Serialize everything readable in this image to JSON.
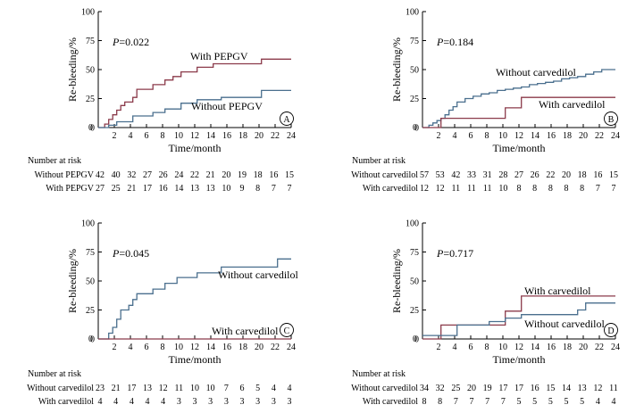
{
  "chart_data": [
    {
      "type": "line",
      "panel_label": "A",
      "p_value": "=0.022",
      "xlabel": "Time/month",
      "ylabel": "Re-bleeding/%",
      "xlim": [
        0,
        24
      ],
      "ylim": [
        0,
        100
      ],
      "xticks": [
        2,
        4,
        6,
        8,
        10,
        12,
        14,
        16,
        18,
        20,
        22,
        24
      ],
      "yticks": [
        0,
        25,
        50,
        75,
        100
      ],
      "series": [
        {
          "name": "With PEPGV",
          "color": "#8b3a4a",
          "x": [
            0,
            0.8,
            1.3,
            1.8,
            2.3,
            2.8,
            3.3,
            4.3,
            4.8,
            6.8,
            8.3,
            9.3,
            10.3,
            12.3,
            14.3,
            15.3,
            20.3,
            22.3,
            24
          ],
          "y": [
            0,
            3,
            7,
            11,
            15,
            19,
            22,
            26,
            33,
            37,
            41,
            44,
            48,
            52,
            55,
            55,
            59,
            59,
            59
          ]
        },
        {
          "name": "Without PEPGV",
          "color": "#4a6f8e",
          "x": [
            0,
            1.3,
            2.3,
            4.3,
            6.8,
            8.3,
            10.3,
            12.3,
            15.3,
            18.3,
            20.3,
            22.3,
            24
          ],
          "y": [
            0,
            2,
            5,
            10,
            13,
            16,
            21,
            24,
            26,
            26,
            32,
            32,
            32
          ]
        }
      ],
      "risk_table": {
        "title": "Number at risk",
        "rows": [
          {
            "label": "Without PEPGV",
            "values": [
              42,
              40,
              32,
              27,
              26,
              24,
              22,
              21,
              20,
              19,
              18,
              16,
              15
            ]
          },
          {
            "label": "With PEPGV",
            "values": [
              27,
              25,
              21,
              17,
              16,
              14,
              13,
              13,
              10,
              9,
              8,
              7,
              7
            ]
          }
        ]
      }
    },
    {
      "type": "line",
      "panel_label": "B",
      "p_value": "=0.184",
      "xlabel": "Time/month",
      "ylabel": "Re-bleeding/%",
      "xlim": [
        0,
        24
      ],
      "ylim": [
        0,
        100
      ],
      "xticks": [
        2,
        4,
        6,
        8,
        10,
        12,
        14,
        16,
        18,
        20,
        22,
        24
      ],
      "yticks": [
        0,
        25,
        50,
        75,
        100
      ],
      "series": [
        {
          "name": "Without carvedilol",
          "color": "#4a6f8e",
          "x": [
            0,
            0.8,
            1.3,
            1.8,
            2.3,
            2.8,
            3.3,
            3.8,
            4.3,
            5.3,
            6.3,
            7.3,
            8.3,
            9.3,
            10.3,
            11.3,
            12.3,
            13.3,
            14.3,
            15.3,
            16.3,
            17.3,
            18.3,
            19.3,
            20.3,
            21.3,
            22.3,
            24
          ],
          "y": [
            0,
            2,
            4,
            6,
            8,
            11,
            15,
            18,
            22,
            25,
            27,
            29,
            30,
            32,
            33,
            34,
            35,
            37,
            38,
            39,
            40,
            42,
            43,
            44,
            46,
            48,
            50,
            50
          ]
        },
        {
          "name": "With carvedilol",
          "color": "#8b3a4a",
          "x": [
            0,
            2.3,
            10.3,
            12.3,
            24
          ],
          "y": [
            0,
            8,
            17,
            26,
            26
          ]
        }
      ],
      "risk_table": {
        "title": "Number at risk",
        "rows": [
          {
            "label": "Without carvedilol",
            "values": [
              57,
              53,
              42,
              33,
              31,
              28,
              27,
              26,
              22,
              20,
              18,
              16,
              15
            ]
          },
          {
            "label": "With carvedilol",
            "values": [
              12,
              12,
              11,
              11,
              11,
              10,
              8,
              8,
              8,
              8,
              8,
              7,
              7
            ]
          }
        ]
      }
    },
    {
      "type": "line",
      "panel_label": "C",
      "p_value": "=0.045",
      "xlabel": "Time/month",
      "ylabel": "Re-bleeding/%",
      "xlim": [
        0,
        24
      ],
      "ylim": [
        0,
        100
      ],
      "xticks": [
        2,
        4,
        6,
        8,
        10,
        12,
        14,
        16,
        18,
        20,
        22,
        24
      ],
      "yticks": [
        0,
        25,
        50,
        75,
        100
      ],
      "series": [
        {
          "name": "Without carvedilol",
          "color": "#4a6f8e",
          "x": [
            0,
            1.3,
            1.8,
            2.3,
            2.8,
            3.8,
            4.3,
            4.8,
            6.8,
            8.3,
            9.8,
            12.3,
            15.3,
            20.3,
            22.3,
            24
          ],
          "y": [
            0,
            5,
            10,
            17,
            25,
            29,
            34,
            39,
            43,
            48,
            53,
            57,
            62,
            62,
            69,
            69
          ]
        },
        {
          "name": "With carvedilol",
          "color": "#8b3a4a",
          "x": [
            0,
            24
          ],
          "y": [
            0,
            0
          ]
        }
      ],
      "risk_table": {
        "title": "Number at risk",
        "rows": [
          {
            "label": "Without carvedilol",
            "values": [
              23,
              21,
              17,
              13,
              12,
              11,
              10,
              10,
              7,
              6,
              5,
              4,
              4
            ]
          },
          {
            "label": "With carvedilol",
            "values": [
              4,
              4,
              4,
              4,
              4,
              3,
              3,
              3,
              3,
              3,
              3,
              3,
              3
            ]
          }
        ]
      }
    },
    {
      "type": "line",
      "panel_label": "D",
      "p_value": "=0.717",
      "xlabel": "Time/month",
      "ylabel": "Re-bleeding/%",
      "xlim": [
        0,
        24
      ],
      "ylim": [
        0,
        100
      ],
      "xticks": [
        2,
        4,
        6,
        8,
        10,
        12,
        14,
        16,
        18,
        20,
        22,
        24
      ],
      "yticks": [
        0,
        25,
        50,
        75,
        100
      ],
      "series": [
        {
          "name": "With carvedilol",
          "color": "#8b3a4a",
          "x": [
            0,
            2.3,
            10.3,
            12.3,
            24
          ],
          "y": [
            0,
            12,
            24,
            37,
            37
          ]
        },
        {
          "name": "Without carvedilol",
          "color": "#4a6f8e",
          "x": [
            0,
            4.3,
            8.3,
            10.3,
            12.3,
            19.3,
            20.3,
            24
          ],
          "y": [
            3,
            12,
            15,
            18,
            21,
            25,
            31,
            31
          ]
        }
      ],
      "risk_table": {
        "title": "Number at risk",
        "rows": [
          {
            "label": "Without carvedilol",
            "values": [
              34,
              32,
              25,
              20,
              19,
              17,
              17,
              16,
              15,
              14,
              13,
              12,
              11
            ]
          },
          {
            "label": "With carvedilol",
            "values": [
              8,
              8,
              7,
              7,
              7,
              7,
              5,
              5,
              5,
              5,
              5,
              4,
              4
            ]
          }
        ]
      }
    }
  ]
}
